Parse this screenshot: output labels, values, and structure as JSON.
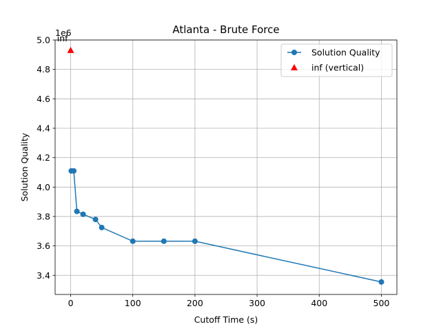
{
  "chart_data": {
    "type": "line",
    "title": "Atlanta - Brute Force",
    "xlabel": "Cutoff Time (s)",
    "ylabel": "Solution Quality",
    "y_offset_text": "1e6",
    "xlim": [
      -25,
      525
    ],
    "ylim": [
      3.27,
      5.0
    ],
    "xticks": [
      0,
      100,
      200,
      300,
      400,
      500
    ],
    "yticks": [
      3.4,
      3.6,
      3.8,
      4.0,
      4.2,
      4.4,
      4.6,
      4.8,
      5.0
    ],
    "ytick_labels": [
      "3.4",
      "3.6",
      "3.8",
      "4.0",
      "4.2",
      "4.4",
      "4.6",
      "4.8",
      "5.0"
    ],
    "xtick_labels": [
      "0",
      "100",
      "200",
      "300",
      "400",
      "500"
    ],
    "grid": true,
    "legend_position": "top-right",
    "series": [
      {
        "name": "Solution Quality",
        "color": "#1f77b4",
        "marker": "circle",
        "x": [
          1,
          5,
          10,
          20,
          40,
          50,
          100,
          150,
          200,
          500
        ],
        "y": [
          4.11,
          4.11,
          3.835,
          3.815,
          3.78,
          3.725,
          3.632,
          3.632,
          3.632,
          3.355
        ]
      },
      {
        "name": "inf (vertical)",
        "color": "#ff0000",
        "marker": "triangle",
        "x": [
          0
        ],
        "y": [
          4.93
        ]
      }
    ],
    "annotations": [
      {
        "text": "inf",
        "x": 0,
        "y": 4.93
      }
    ]
  }
}
